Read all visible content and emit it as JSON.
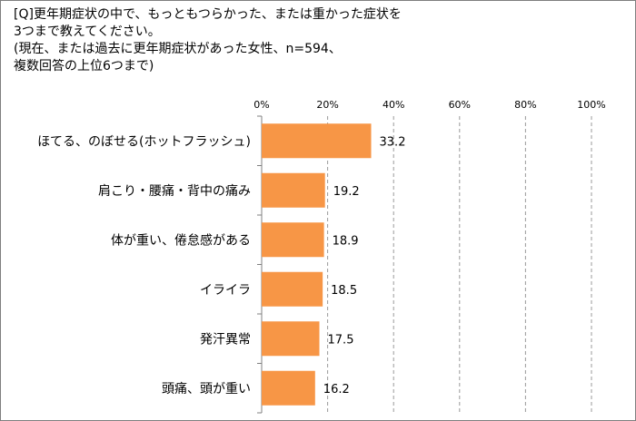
{
  "question": {
    "line1": "[Q]更年期症状の中で、もっともつらかった、または重かった症状を",
    "line2": "3つまで教えてください。",
    "line3": "(現在、または過去に更年期症状があった女性、n=594、",
    "line4": "複数回答の上位6つまで)"
  },
  "chart_data": {
    "type": "bar",
    "orientation": "horizontal",
    "categories": [
      "ほてる、のぼせる(ホットフラッシュ)",
      "肩こり・腰痛・背中の痛み",
      "体が重い、倦怠感がある",
      "イライラ",
      "発汗異常",
      "頭痛、頭が重い"
    ],
    "values": [
      33.2,
      19.2,
      18.9,
      18.5,
      17.5,
      16.2
    ],
    "value_labels": [
      "33.2",
      "19.2",
      "18.9",
      "18.5",
      "17.5",
      "16.2"
    ],
    "xlim": [
      0,
      100
    ],
    "ticks": [
      0,
      20,
      40,
      60,
      80,
      100
    ],
    "tick_labels": [
      "0%",
      "20%",
      "40%",
      "60%",
      "80%",
      "100%"
    ],
    "bar_color": "#f79646",
    "grid": "dashed vertical"
  }
}
